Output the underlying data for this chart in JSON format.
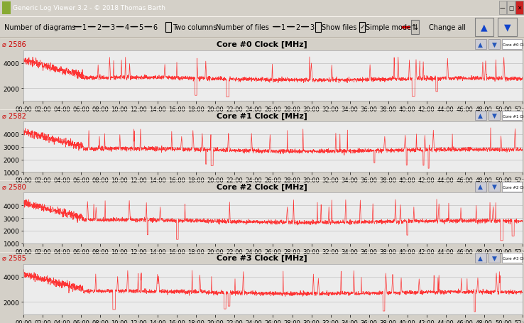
{
  "title_bar": "Generic Log Viewer 3.2 - © 2018 Thomas Barth",
  "panels": [
    {
      "title": "Core #0 Clock [MHz]",
      "max_val": 2586,
      "ylim": [
        1000,
        5000
      ],
      "yticks": [
        2000,
        4000
      ]
    },
    {
      "title": "Core #1 Clock [MHz]",
      "max_val": 2582,
      "ylim": [
        1000,
        5000
      ],
      "yticks": [
        1000,
        2000,
        3000,
        4000
      ]
    },
    {
      "title": "Core #2 Clock [MHz]",
      "max_val": 2580,
      "ylim": [
        1000,
        5000
      ],
      "yticks": [
        1000,
        2000,
        3000,
        4000
      ]
    },
    {
      "title": "Core #3 Clock [MHz]",
      "max_val": 2585,
      "ylim": [
        1000,
        5000
      ],
      "yticks": [
        2000,
        4000
      ]
    }
  ],
  "time_duration": 3120,
  "line_color": "#ff2020",
  "text_color": "#cc0000",
  "window_bg": "#d4d0c8"
}
